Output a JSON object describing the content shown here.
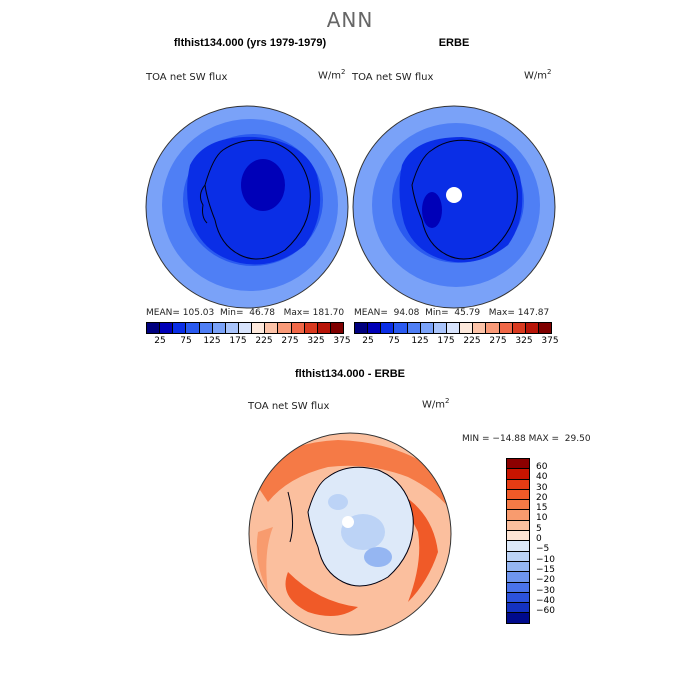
{
  "title": "ANN",
  "top_left": {
    "title": "flthist134.000 (yrs 1979-1979)",
    "variable": "TOA net SW flux",
    "units": "W/m",
    "units_exp": "2",
    "mean_label": "MEAN=",
    "mean": "105.03",
    "min_label": "Min=",
    "min": "46.78",
    "max_label": "Max=",
    "max": "181.70"
  },
  "top_right": {
    "title": "ERBE",
    "variable": "TOA net SW flux",
    "units": "W/m",
    "units_exp": "2",
    "mean_label": "MEAN=",
    "mean": "94.08",
    "min_label": "Min=",
    "min": "45.79",
    "max_label": "Max=",
    "max": "147.87"
  },
  "abs_colorbar": {
    "colors": [
      "#00007f",
      "#0000b8",
      "#0a2ee6",
      "#2a5af0",
      "#4f7ff5",
      "#7aa2f8",
      "#a9c4fb",
      "#d7e3fc",
      "#fde9dc",
      "#fcc3a8",
      "#f99a78",
      "#f06848",
      "#d93a20",
      "#b81508",
      "#7f0000"
    ],
    "ticks": [
      "25",
      "75",
      "125",
      "175",
      "225",
      "275",
      "325",
      "375"
    ]
  },
  "bottom": {
    "title": "flthist134.000 - ERBE",
    "variable": "TOA net SW flux",
    "units": "W/m",
    "units_exp": "2",
    "minmax": "MIN = −14.88 MAX =  29.50"
  },
  "diff_colorbar": {
    "colors": [
      "#8b0000",
      "#c81400",
      "#e63c14",
      "#f05a28",
      "#f57a46",
      "#f89b6e",
      "#fbbf9e",
      "#fde4d4",
      "#dde9f9",
      "#bcd3f6",
      "#95b6f2",
      "#6e95ee",
      "#4a73ea",
      "#2c52dc",
      "#1432c0",
      "#000a8c"
    ],
    "labels": [
      "60",
      "40",
      "30",
      "20",
      "15",
      "10",
      "5",
      "0",
      "−5",
      "−10",
      "−15",
      "−20",
      "−30",
      "−40",
      "−60"
    ]
  }
}
